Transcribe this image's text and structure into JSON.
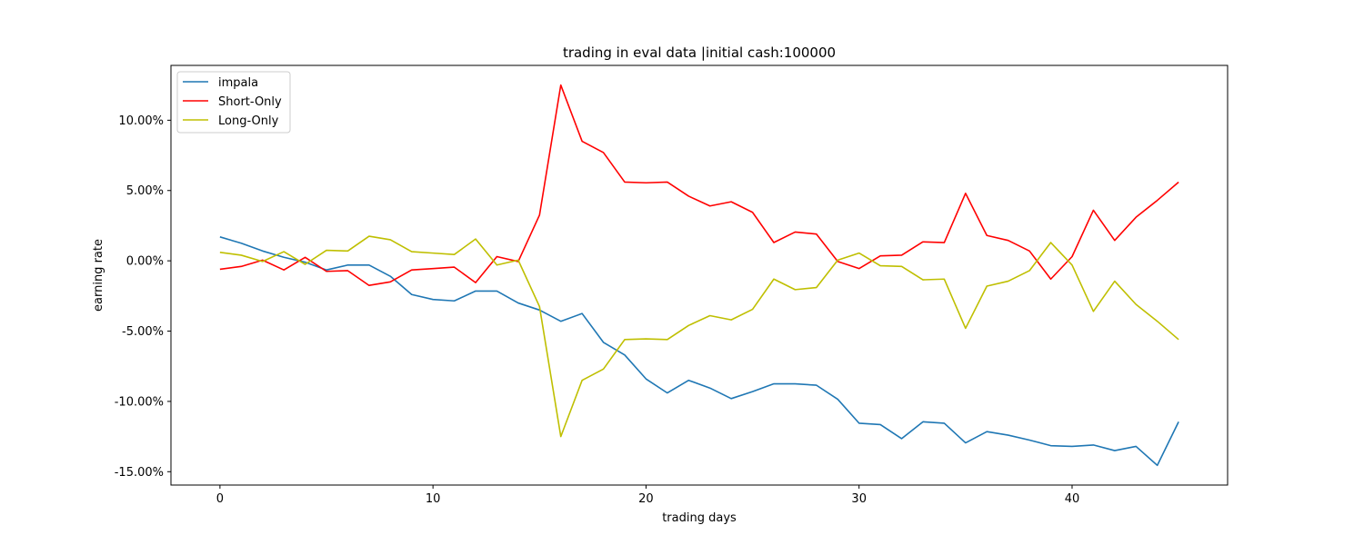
{
  "chart_data": {
    "type": "line",
    "title": "trading in eval data |initial cash:100000",
    "xlabel": "trading days",
    "ylabel": "earning rate",
    "xlim": [
      -2.3,
      47.3
    ],
    "ylim": [
      -15.95,
      13.9
    ],
    "xticks": [
      0,
      10,
      20,
      30,
      40
    ],
    "xtick_labels": [
      "0",
      "10",
      "20",
      "30",
      "40"
    ],
    "yticks": [
      10,
      5,
      0,
      -5,
      -10,
      -15
    ],
    "ytick_labels": [
      "10.00%",
      "5.00%",
      "0.00%",
      "-5.00%",
      "-10.00%",
      "-15.00%"
    ],
    "grid": false,
    "legend_position": "top-left",
    "x": [
      0,
      1,
      2,
      3,
      4,
      5,
      6,
      7,
      8,
      9,
      10,
      11,
      12,
      13,
      14,
      15,
      16,
      17,
      18,
      19,
      20,
      21,
      22,
      23,
      24,
      25,
      26,
      27,
      28,
      29,
      30,
      31,
      32,
      33,
      34,
      35,
      36,
      37,
      38,
      39,
      40,
      41,
      42,
      43,
      44,
      45
    ],
    "series": [
      {
        "name": "impala",
        "color": "#1f77b4",
        "values": [
          1.7,
          1.25,
          0.7,
          0.25,
          -0.1,
          -0.65,
          -0.3,
          -0.3,
          -1.1,
          -2.4,
          -2.75,
          -2.85,
          -2.15,
          -2.15,
          -3.0,
          -3.5,
          -4.3,
          -3.75,
          -5.8,
          -6.7,
          -8.4,
          -9.4,
          -8.5,
          -9.05,
          -9.8,
          -9.3,
          -8.75,
          -8.75,
          -8.85,
          -9.85,
          -11.55,
          -11.65,
          -12.65,
          -11.45,
          -11.55,
          -12.95,
          -12.15,
          -12.4,
          -12.75,
          -13.15,
          -13.2,
          -13.1,
          -13.5,
          -13.2,
          -14.55,
          -11.45
        ]
      },
      {
        "name": "Short-Only",
        "color": "#ff0000",
        "values": [
          -0.6,
          -0.4,
          0.05,
          -0.65,
          0.25,
          -0.75,
          -0.7,
          -1.75,
          -1.5,
          -0.65,
          -0.55,
          -0.45,
          -1.55,
          0.3,
          -0.05,
          3.25,
          12.5,
          8.5,
          7.7,
          5.6,
          5.55,
          5.6,
          4.6,
          3.9,
          4.2,
          3.45,
          1.3,
          2.05,
          1.9,
          -0.05,
          -0.55,
          0.35,
          0.4,
          1.35,
          1.3,
          4.8,
          1.8,
          1.45,
          0.7,
          -1.3,
          0.3,
          3.6,
          1.45,
          3.1,
          4.3,
          5.6
        ]
      },
      {
        "name": "Long-Only",
        "color": "#bfbf00",
        "values": [
          0.6,
          0.4,
          -0.05,
          0.65,
          -0.25,
          0.75,
          0.7,
          1.75,
          1.5,
          0.65,
          0.55,
          0.45,
          1.55,
          -0.3,
          0.05,
          -3.25,
          -12.5,
          -8.5,
          -7.7,
          -5.6,
          -5.55,
          -5.6,
          -4.6,
          -3.9,
          -4.2,
          -3.45,
          -1.3,
          -2.05,
          -1.9,
          0.05,
          0.55,
          -0.35,
          -0.4,
          -1.35,
          -1.3,
          -4.8,
          -1.8,
          -1.45,
          -0.7,
          1.3,
          -0.3,
          -3.6,
          -1.45,
          -3.1,
          -4.3,
          -5.6
        ]
      }
    ]
  }
}
